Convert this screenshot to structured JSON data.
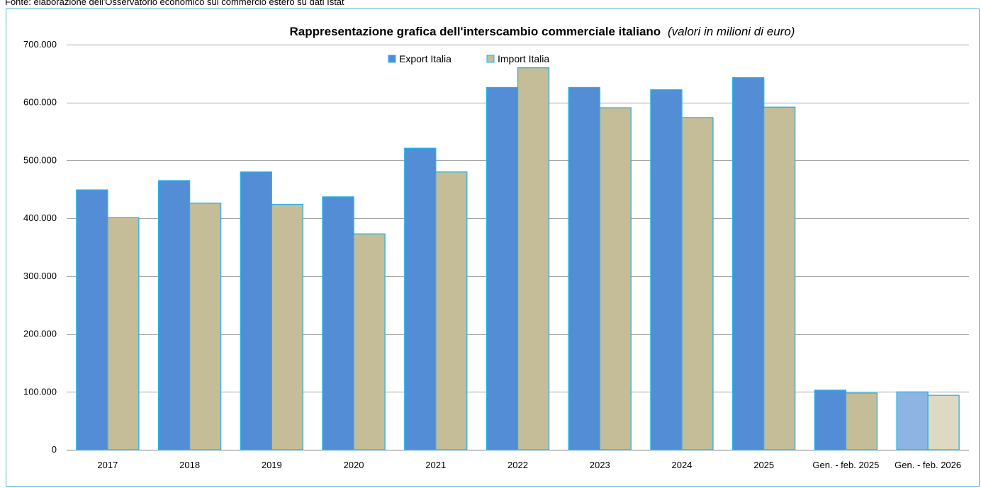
{
  "source_note": "Fonte: elaborazione dell'Osservatorio economico sul commercio estero su dati Istat",
  "chart_data": {
    "type": "bar",
    "title": "Rappresentazione grafica dell'interscambio commerciale italiano",
    "subtitle": "(valori in milioni di euro)",
    "categories": [
      "2017",
      "2018",
      "2019",
      "2020",
      "2021",
      "2022",
      "2023",
      "2024",
      "2025",
      "Gen. - feb.  2025",
      "Gen. - feb.  2026"
    ],
    "series": [
      {
        "name": "Export Italia",
        "color": "#538dd5",
        "highlight_color": "#8eb4e3",
        "values": [
          449000,
          465000,
          480000,
          437000,
          521000,
          626000,
          626000,
          622000,
          643000,
          103000,
          100000
        ]
      },
      {
        "name": "Import Italia",
        "color": "#c4bd97",
        "highlight_color": "#ddd9c3",
        "values": [
          401000,
          426000,
          424000,
          373000,
          480000,
          660000,
          591000,
          574000,
          592000,
          98000,
          94000
        ]
      }
    ],
    "highlighted_category": "Gen. - feb.  2026",
    "bar_border_color": "#1fb5e8",
    "ylim": [
      0,
      700000
    ],
    "yticks": [
      0,
      100000,
      200000,
      300000,
      400000,
      500000,
      600000,
      700000
    ],
    "ytick_labels": [
      "0",
      "100.000",
      "200.000",
      "300.000",
      "400.000",
      "500.000",
      "600.000",
      "700.000"
    ],
    "grid": true,
    "legend_position": "top-center",
    "xlabel": "",
    "ylabel": ""
  }
}
